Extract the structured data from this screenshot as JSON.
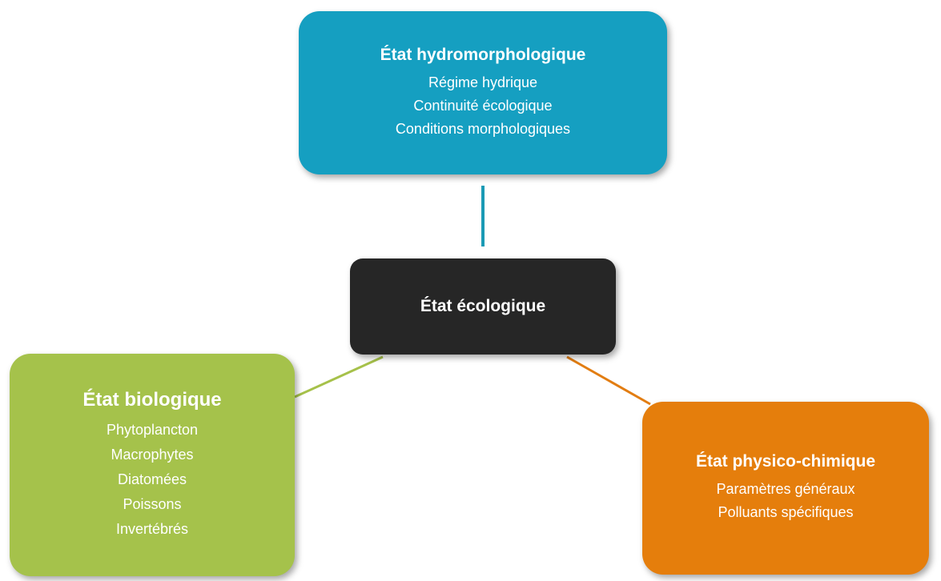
{
  "nodes": [
    {
      "title": "État hydromorphologique",
      "items": [
        "Régime hydrique",
        "Continuité écologique",
        "Conditions morphologiques"
      ]
    },
    {
      "title": "État écologique",
      "items": []
    },
    {
      "title": "État biologique",
      "items": [
        "Phytoplancton",
        "Macrophytes",
        "Diatomées",
        "Poissons",
        "Invertébrés"
      ]
    },
    {
      "title": "État physico-chimique",
      "items": [
        "Paramètres généraux",
        "Polluants spécifiques"
      ]
    }
  ]
}
